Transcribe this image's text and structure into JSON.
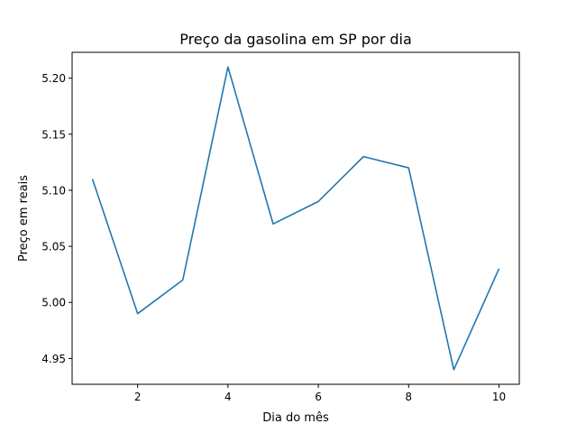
{
  "chart_data": {
    "type": "line",
    "title": "Preço da gasolina em SP por dia",
    "xlabel": "Dia do mês",
    "ylabel": "Preço em reais",
    "x": [
      1,
      2,
      3,
      4,
      5,
      6,
      7,
      8,
      9,
      10
    ],
    "series": [
      {
        "values": [
          5.11,
          4.99,
          5.02,
          5.21,
          5.07,
          5.09,
          5.13,
          5.12,
          4.94,
          5.03
        ],
        "color": "#1f77b4"
      }
    ],
    "xlim": [
      0.55,
      10.45
    ],
    "ylim": [
      4.927,
      5.223
    ],
    "xticks": [
      2,
      4,
      6,
      8,
      10
    ],
    "xtick_labels": [
      "2",
      "4",
      "6",
      "8",
      "10"
    ],
    "yticks": [
      4.95,
      5.0,
      5.05,
      5.1,
      5.15,
      5.2
    ],
    "ytick_labels": [
      "4.95",
      "5.00",
      "5.05",
      "5.10",
      "5.15",
      "5.20"
    ],
    "grid": false,
    "legend": "none"
  }
}
